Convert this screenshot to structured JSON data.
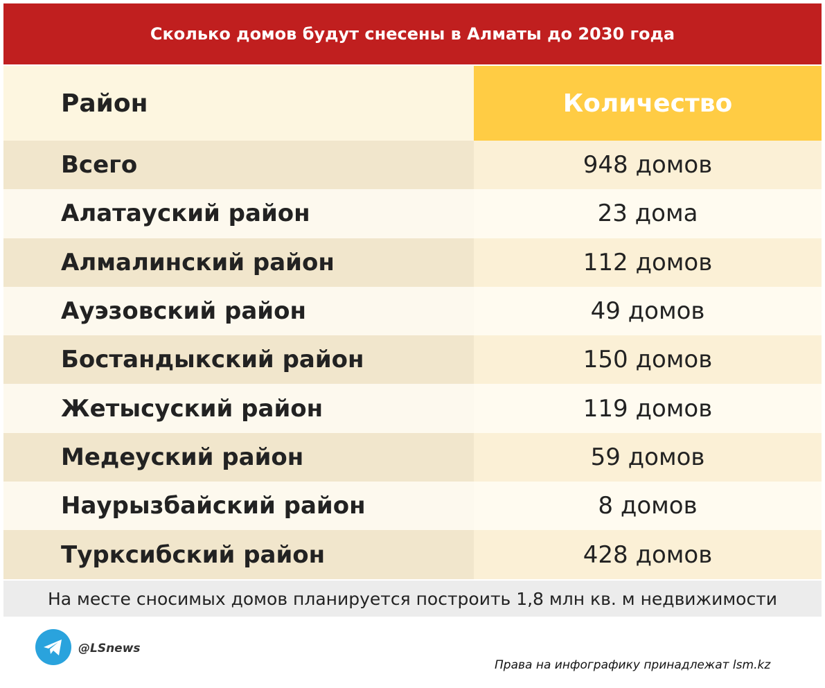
{
  "header": {
    "title": "Сколько домов будут снесены в Алматы до 2030 года"
  },
  "table": {
    "columns": [
      "Район",
      "Количество"
    ],
    "rows": [
      [
        "Всего",
        "948 домов"
      ],
      [
        "Алатауский район",
        "23 дома"
      ],
      [
        "Алмалинский район",
        "112 домов"
      ],
      [
        "Ауэзовский район",
        "49 домов"
      ],
      [
        "Бостандыкский район",
        "150 домов"
      ],
      [
        "Жетысуский район",
        "119 домов"
      ],
      [
        "Медеуский район",
        "59 домов"
      ],
      [
        "Наурызбайский район",
        "8 домов"
      ],
      [
        "Турксибский район",
        "428 домов"
      ]
    ]
  },
  "note": "На месте сносимых домов планируется построить 1,8 млн кв. м недвижимости",
  "footer": {
    "channel": "@LSnews",
    "credit": "Права на инфографику принадлежат lsm.kz"
  }
}
